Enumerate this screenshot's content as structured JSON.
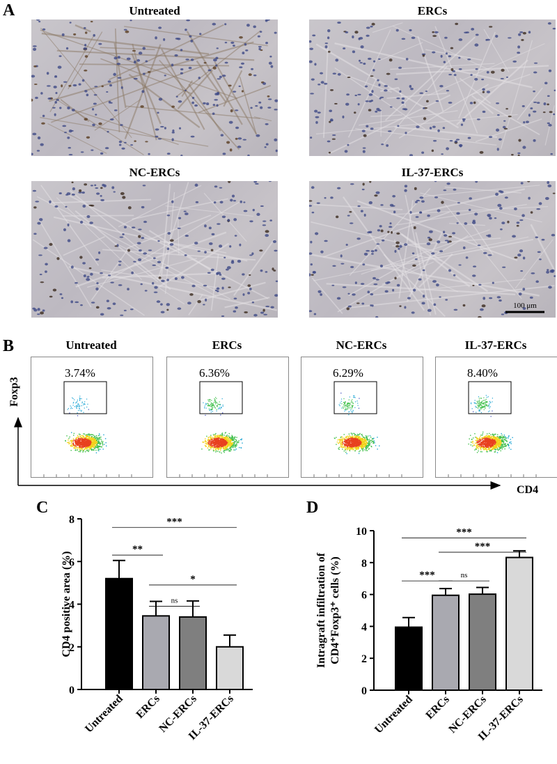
{
  "panels": {
    "a": {
      "letter": "A",
      "images": [
        {
          "title": "Untreated"
        },
        {
          "title": "ERCs"
        },
        {
          "title": "NC-ERCs"
        },
        {
          "title": "IL-37-ERCs"
        }
      ],
      "scale_bar_label": "100 μm"
    },
    "b": {
      "letter": "B",
      "plots": [
        {
          "title": "Untreated",
          "gate_percent": "3.74%"
        },
        {
          "title": "ERCs",
          "gate_percent": "6.36%"
        },
        {
          "title": "NC-ERCs",
          "gate_percent": "6.29%"
        },
        {
          "title": "IL-37-ERCs",
          "gate_percent": "8.40%"
        }
      ],
      "y_axis_label": "Foxp3",
      "x_axis_label": "CD4"
    },
    "c": {
      "letter": "C"
    },
    "d": {
      "letter": "D"
    }
  },
  "chart_data": [
    {
      "type": "bar",
      "panel": "C",
      "categories": [
        "Untreated",
        "ERCs",
        "NC-ERCs",
        "IL-37-ERCs"
      ],
      "values": [
        5.2,
        3.45,
        3.4,
        2.0
      ],
      "errors": [
        0.85,
        0.68,
        0.75,
        0.55
      ],
      "colors": [
        "#000000",
        "#a9a9b0",
        "#7f7f7f",
        "#d9d9d9"
      ],
      "ylabel": "CD4 positive area (%)",
      "ylim": [
        0,
        8
      ],
      "yticks": [
        0,
        2,
        4,
        6,
        8
      ],
      "significance": [
        {
          "from": 0,
          "to": 3,
          "label": "***",
          "y": 7.6
        },
        {
          "from": 0,
          "to": 1,
          "label": "**",
          "y": 6.3
        },
        {
          "from": 1,
          "to": 3,
          "label": "*",
          "y": 4.9
        },
        {
          "from": 1,
          "to": 2,
          "label": "ns",
          "y": 3.9
        }
      ]
    },
    {
      "type": "bar",
      "panel": "D",
      "categories": [
        "Untreated",
        "ERCs",
        "NC-ERCs",
        "IL-37-ERCs"
      ],
      "values": [
        3.95,
        5.95,
        6.02,
        8.32
      ],
      "errors": [
        0.6,
        0.42,
        0.42,
        0.42
      ],
      "colors": [
        "#000000",
        "#a9a9b0",
        "#7f7f7f",
        "#d9d9d9"
      ],
      "ylabel_lines": [
        "Intragraft infiltration of",
        "CD4⁺Foxp3⁺ cells (%)"
      ],
      "ylim": [
        0,
        10
      ],
      "yticks": [
        0,
        2,
        4,
        6,
        8,
        10
      ],
      "significance": [
        {
          "from": 0,
          "to": 3,
          "label": "***",
          "y": 9.55
        },
        {
          "from": 1,
          "to": 3,
          "label": "***",
          "y": 8.65
        },
        {
          "from": 0,
          "to": 1,
          "label": "***",
          "y": 6.85
        },
        {
          "from": 1,
          "to": 2,
          "label": "ns",
          "y": 6.85
        }
      ]
    }
  ]
}
